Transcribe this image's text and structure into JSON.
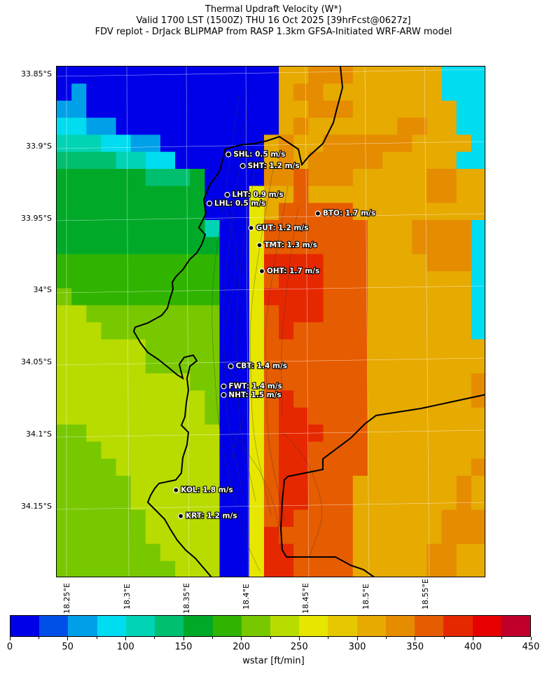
{
  "title": {
    "line1": "Thermal Updraft Velocity (W*)",
    "line2": "Valid 1700 LST (1500Z) THU 16 Oct 2025 [39hrFcst@0627z]",
    "line3": "FDV replot - DrJack BLIPMAP from RASP 1.3km GFSA-Initiated WRF-ARW model"
  },
  "axes": {
    "lat_labels": [
      "33.85°S",
      "33.9°S",
      "33.95°S",
      "34°S",
      "34.05°S",
      "34.1°S",
      "34.15°S"
    ],
    "lon_labels": [
      "18.25°E",
      "18.3°E",
      "18.35°E",
      "18.4°E",
      "18.45°E",
      "18.5°E",
      "18.55°E"
    ]
  },
  "stations": [
    {
      "code": "SHL",
      "label": "SHL: 0.5 m/s",
      "lon": 18.384,
      "lat": -33.906
    },
    {
      "code": "SHT",
      "label": "SHT: 1.2 m/s",
      "lon": 18.396,
      "lat": -33.914
    },
    {
      "code": "LHT",
      "label": "LHT: 0.9 m/s",
      "lon": 18.383,
      "lat": -33.934
    },
    {
      "code": "LHL",
      "label": "LHL: 0.5 m/s",
      "lon": 18.368,
      "lat": -33.94
    },
    {
      "code": "BTO",
      "label": "BTO: 1.7 m/s",
      "lon": 18.459,
      "lat": -33.947
    },
    {
      "code": "GUT",
      "label": "GUT: 1.2 m/s",
      "lon": 18.403,
      "lat": -33.957
    },
    {
      "code": "TMT",
      "label": "TMT: 1.3 m/s",
      "lon": 18.41,
      "lat": -33.969
    },
    {
      "code": "OHT",
      "label": "OHT: 1.7 m/s",
      "lon": 18.412,
      "lat": -33.987
    },
    {
      "code": "CBT",
      "label": "CBT: 1.4 m/s",
      "lon": 18.386,
      "lat": -34.053
    },
    {
      "code": "FWT",
      "label": "FWT: 1.4 m/s",
      "lon": 18.38,
      "lat": -34.067
    },
    {
      "code": "NHT",
      "label": "NHT: 1.5 m/s",
      "lon": 18.38,
      "lat": -34.073
    },
    {
      "code": "KOL",
      "label": "KOL: 1.8 m/s",
      "lon": 18.34,
      "lat": -34.139
    },
    {
      "code": "KRT",
      "label": "KRT: 1.2 m/s",
      "lon": 18.344,
      "lat": -34.157
    }
  ],
  "colorbar": {
    "label": "wstar [ft/min]",
    "min": 0,
    "max": 450,
    "step": 25,
    "tick_labels": [
      "0",
      "50",
      "100",
      "150",
      "200",
      "250",
      "300",
      "350",
      "400",
      "450"
    ],
    "colors": [
      "#0000e8",
      "#0050e8",
      "#00a0e8",
      "#00dcf0",
      "#00d4b4",
      "#00c070",
      "#00aa28",
      "#30b400",
      "#78c800",
      "#b8dc00",
      "#e6e600",
      "#e6c800",
      "#e6aa00",
      "#e68c00",
      "#e65c00",
      "#e62800",
      "#e60000",
      "#c0002a"
    ]
  },
  "chart_data": {
    "type": "heatmap",
    "title": "Thermal Updraft Velocity (W*)",
    "colorbar_label": "wstar [ft/min]",
    "value_range": [
      0,
      450
    ],
    "lon_range": [
      18.24,
      18.6
    ],
    "lat_range": [
      -34.2,
      -33.845
    ],
    "grid_rows": [
      "00000000000000033444333333222",
      "01000000000000034453333333222",
      "11000000000000035444333333322",
      "22110000000000034553333443322",
      "33322110000000345544444433332",
      "44443322000000345444443333322",
      "55555544450000446444555554433",
      "55555555550004556555555554433",
      "55555555550004566666555555555",
      "55555555553006666666655544442",
      "55555555555007666666655544442",
      "66666666666006777766655554442",
      "66666666666006677766655555552",
      "76666666666007777766655555552",
      "77666666666007677766655555552",
      "77766666666008676666655555552",
      "88777766666008666666655555553",
      "88877766666009666666655555553",
      "88887777766009666666655555554",
      "88888777776009676666655555554",
      "88888877776009677666655555555",
      "99888887777009677766655555555",
      "99988888777008677666655555555",
      "99998888877008677666655555554",
      "99999888887008677666555555543",
      "99999888888007677666555555543",
      "99999988888007676666555555444",
      "99999988888007766666555555444",
      "99999998888006776666555554433",
      "99999999888006776666555554433"
    ]
  }
}
